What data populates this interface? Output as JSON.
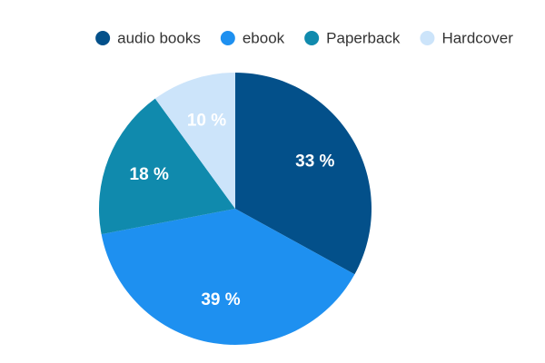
{
  "chart_data": {
    "type": "pie",
    "title": "",
    "start_angle_deg": 0,
    "direction": "clockwise",
    "label_format": "{v} %",
    "legend_position": "top",
    "categories": [
      "audio books",
      "ebook",
      "Paperback",
      "Hardcover"
    ],
    "values": [
      33,
      39,
      18,
      10
    ],
    "colors": [
      "#03508a",
      "#1e90f0",
      "#108aad",
      "#cce4fa"
    ],
    "label_colors": [
      "#ffffff",
      "#ffffff",
      "#ffffff",
      "#ffffff"
    ]
  }
}
